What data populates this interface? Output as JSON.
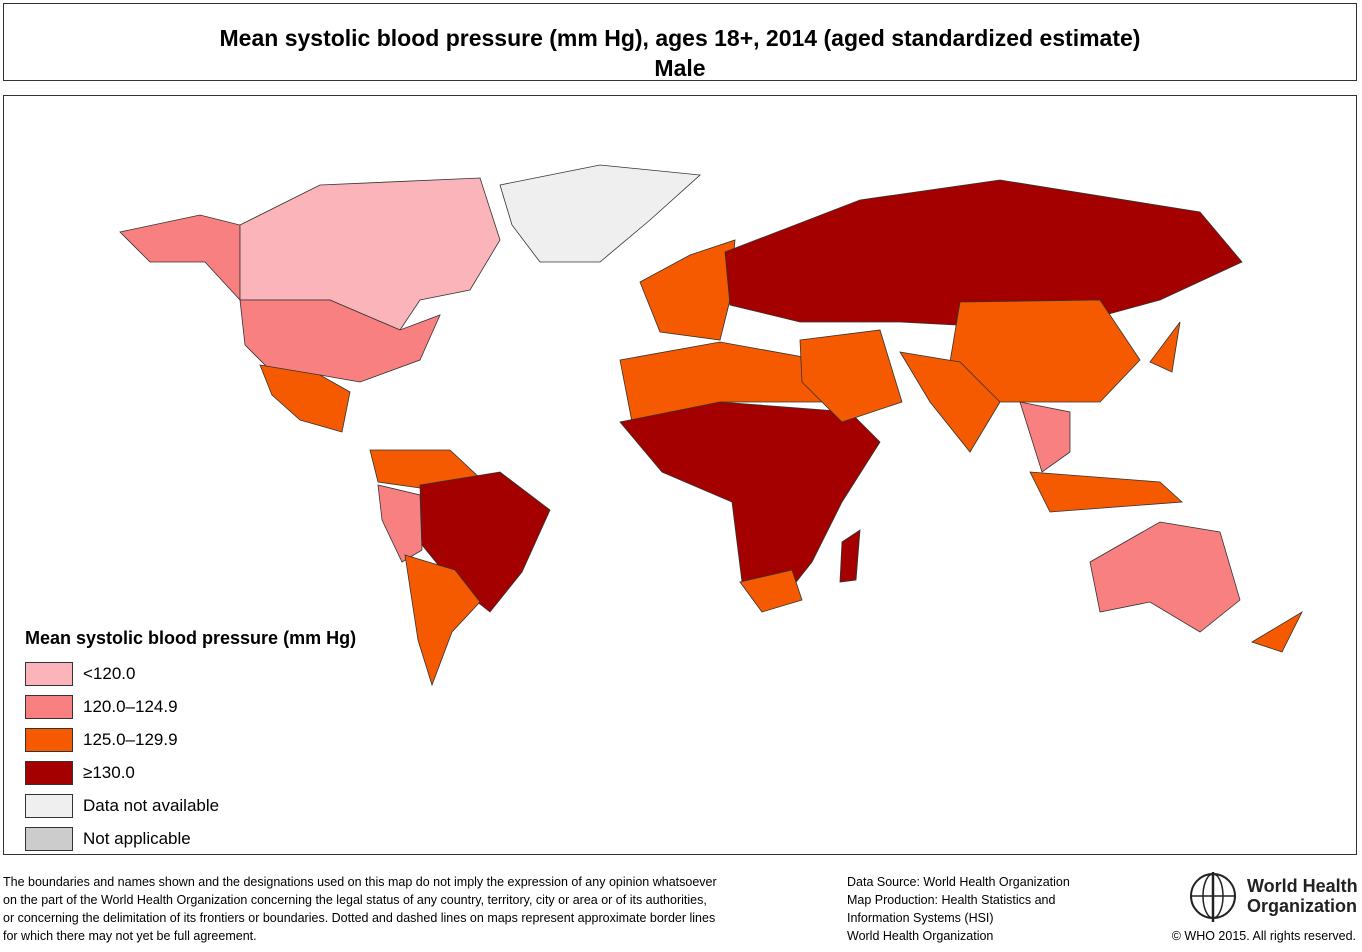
{
  "header": {
    "title": "Mean systolic blood pressure (mm Hg), ages 18+, 2014 (aged standardized estimate)",
    "subtitle": "Male"
  },
  "legend": {
    "title": "Mean systolic blood pressure (mm Hg)",
    "items": [
      {
        "label": "<120.0",
        "color": "#fbb4b9"
      },
      {
        "label": "120.0–124.9",
        "color": "#f98080"
      },
      {
        "label": "125.0–129.9",
        "color": "#f55a00"
      },
      {
        "label": "≥130.0",
        "color": "#a50000"
      },
      {
        "label": "Data not available",
        "color": "#efefef"
      },
      {
        "label": "Not applicable",
        "color": "#cccccc"
      }
    ]
  },
  "footer": {
    "disclaimer": [
      "The boundaries and names shown and the designations used on this map do not imply the expression of any opinion whatsoever",
      "on the part of the World Health Organization concerning the legal status of any country, territory, city or area or of its authorities,",
      "or concerning the delimitation of its frontiers or boundaries. Dotted and dashed lines on maps represent approximate border lines",
      "for which there may not yet be full agreement."
    ],
    "source": [
      "Data Source: World Health Organization",
      "Map Production: Health Statistics and",
      "Information Systems (HSI)",
      "World Health Organization"
    ],
    "logo": [
      "World Health",
      "Organization"
    ],
    "copyright": "© WHO 2015. All rights reserved."
  }
}
